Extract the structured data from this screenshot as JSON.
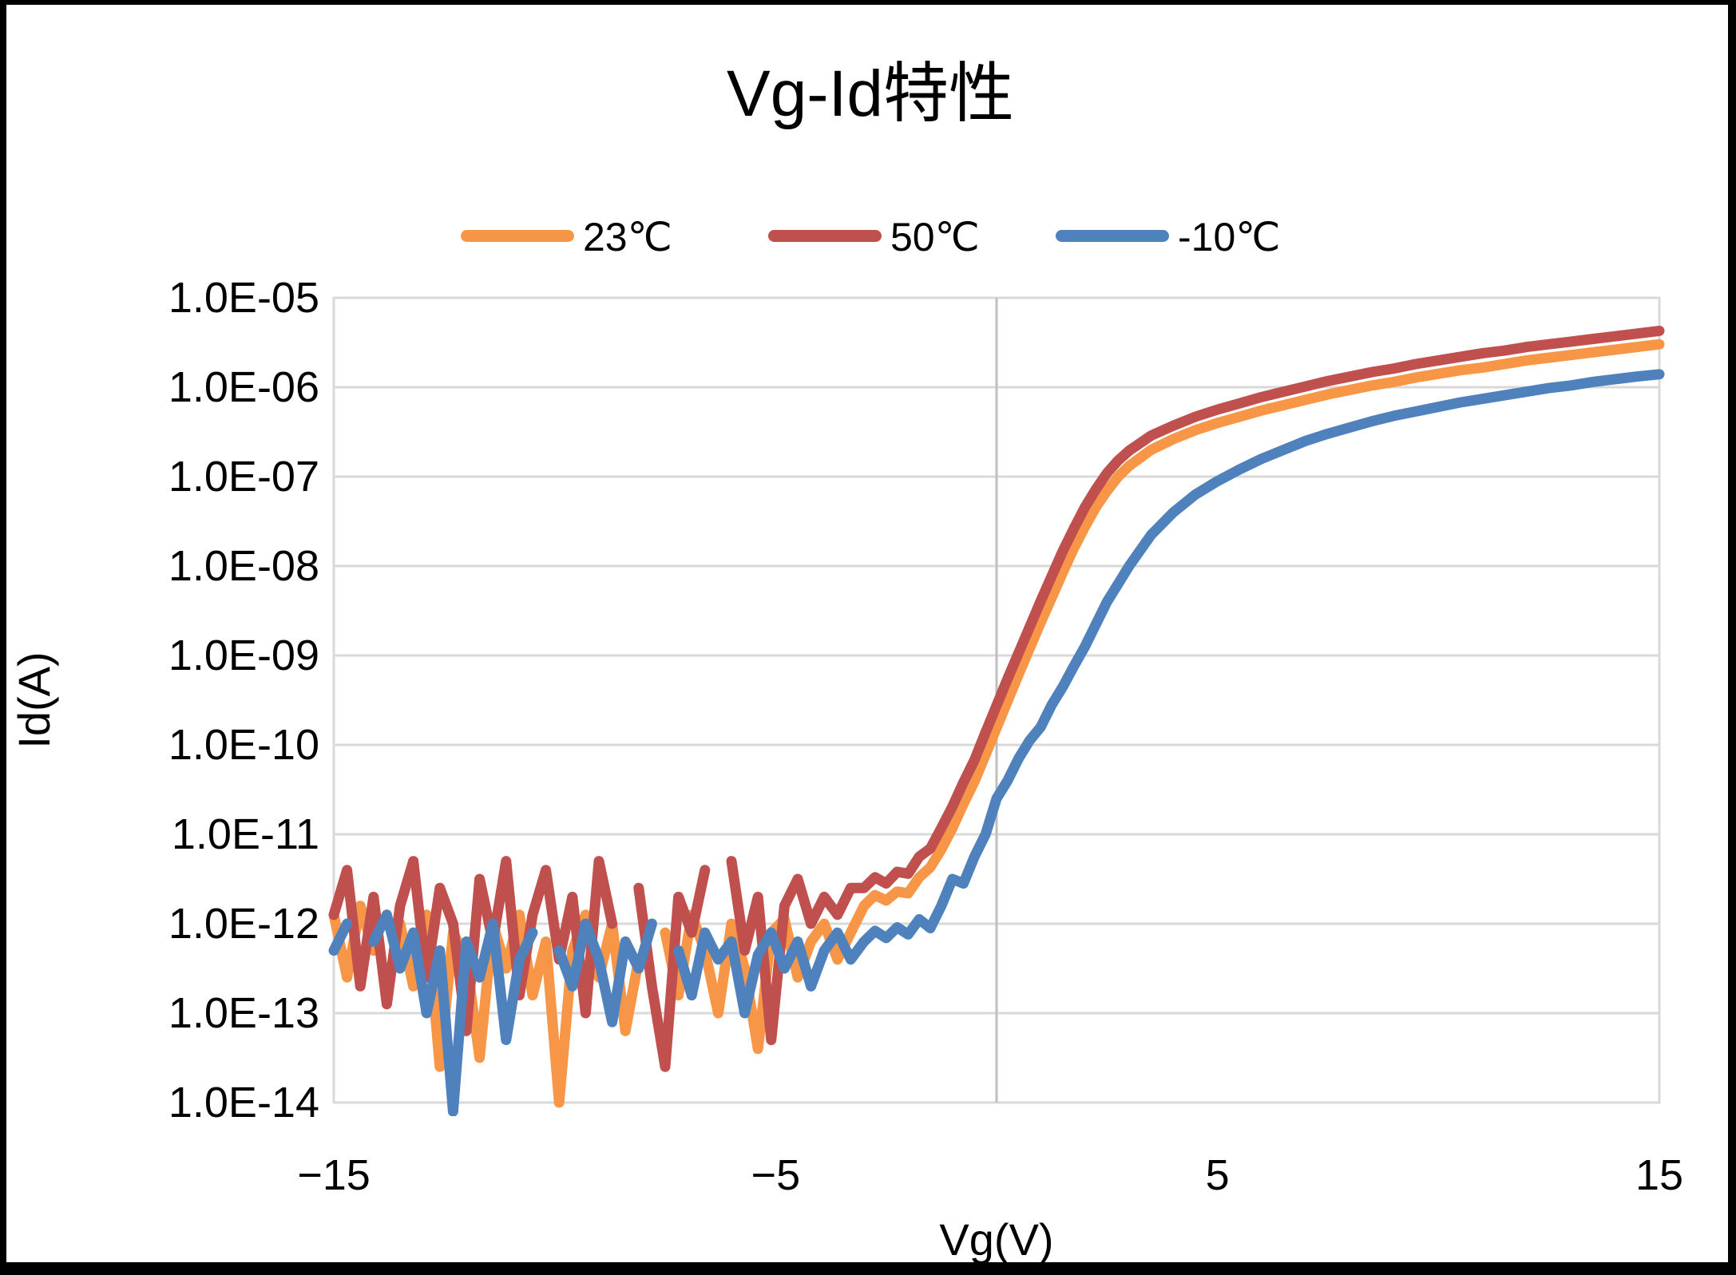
{
  "title": "Vg-Id特性",
  "legend": [
    {
      "label": "23℃",
      "color": "#F79646"
    },
    {
      "label": "50℃",
      "color": "#C0504D"
    },
    {
      "label": "-10℃",
      "color": "#4F81BD"
    }
  ],
  "axes": {
    "x": {
      "label": "Vg(V)",
      "min": -15,
      "max": 15,
      "ticks": [
        {
          "v": -15,
          "label": "−15"
        },
        {
          "v": -5,
          "label": "−5"
        },
        {
          "v": 5,
          "label": "5"
        },
        {
          "v": 15,
          "label": "15"
        }
      ]
    },
    "y": {
      "label": "Id(A)",
      "scale": "log",
      "top_exp": -5,
      "bottom_exp": -14,
      "ticks": [
        "1.0E-05",
        "1.0E-06",
        "1.0E-07",
        "1.0E-08",
        "1.0E-09",
        "1.0E-10",
        "1.0E-11",
        "1.0E-12",
        "1.0E-13",
        "1.0E-14"
      ]
    }
  },
  "colors": {
    "gridline": "#D9D9D9",
    "zero_axis": "#BFBFBF",
    "plot_border": "#D9D9D9",
    "background": "#FFFFFF",
    "frame": "#000000",
    "text": "#000000"
  },
  "chart_data": {
    "type": "line",
    "title": "Vg-Id特性",
    "xlabel": "Vg(V)",
    "ylabel": "Id(A)",
    "xlim": [
      -15,
      15
    ],
    "ylim_log10": [
      -14,
      -5
    ],
    "grid": "horizontal-major",
    "legend_position": "top",
    "y_values_are": "log10(Id in A), null = not plotted (gap)",
    "x": [
      -15,
      -14.7,
      -14.4,
      -14.1,
      -13.8,
      -13.5,
      -13.2,
      -12.9,
      -12.6,
      -12.3,
      -12,
      -11.7,
      -11.4,
      -11.1,
      -10.8,
      -10.5,
      -10.2,
      -9.9,
      -9.6,
      -9.3,
      -9,
      -8.7,
      -8.4,
      -8.1,
      -7.8,
      -7.5,
      -7.2,
      -6.9,
      -6.6,
      -6.3,
      -6,
      -5.7,
      -5.4,
      -5.1,
      -4.8,
      -4.5,
      -4.2,
      -3.9,
      -3.6,
      -3.3,
      -3,
      -2.75,
      -2.5,
      -2.25,
      -2,
      -1.75,
      -1.5,
      -1.25,
      -1,
      -0.75,
      -0.5,
      -0.25,
      0,
      0.25,
      0.5,
      0.75,
      1,
      1.25,
      1.5,
      1.75,
      2,
      2.25,
      2.5,
      2.75,
      3,
      3.5,
      4,
      4.5,
      5,
      5.5,
      6,
      6.5,
      7,
      7.5,
      8,
      8.5,
      9,
      9.5,
      10,
      10.5,
      11,
      11.5,
      12,
      12.5,
      13,
      13.5,
      14,
      14.5,
      15
    ],
    "series": [
      {
        "name": "23℃",
        "color": "#F79646",
        "logId": [
          -11.9,
          -12.6,
          -11.8,
          -12.3,
          null,
          -12.0,
          -12.7,
          -11.9,
          -13.6,
          -12.1,
          -12.4,
          -13.5,
          -12.0,
          -12.5,
          -11.9,
          -12.8,
          -12.2,
          -14.0,
          -12.3,
          -11.9,
          -12.6,
          -12.0,
          -13.2,
          -12.4,
          null,
          -12.1,
          -12.8,
          -11.9,
          -12.3,
          -13.0,
          -12.0,
          -12.5,
          -13.4,
          -12.1,
          -11.95,
          -12.6,
          -12.2,
          -12.0,
          -12.4,
          -12.1,
          -11.8,
          -11.68,
          -11.74,
          -11.64,
          -11.66,
          -11.48,
          -11.37,
          -11.17,
          -10.93,
          -10.66,
          -10.41,
          -10.11,
          -9.81,
          -9.51,
          -9.21,
          -8.92,
          -8.63,
          -8.35,
          -8.07,
          -7.8,
          -7.56,
          -7.34,
          -7.16,
          -7.0,
          -6.88,
          -6.7,
          -6.58,
          -6.48,
          -6.4,
          -6.33,
          -6.26,
          -6.2,
          -6.14,
          -6.08,
          -6.03,
          -5.98,
          -5.94,
          -5.89,
          -5.85,
          -5.81,
          -5.78,
          -5.74,
          -5.7,
          -5.67,
          -5.64,
          -5.61,
          -5.58,
          -5.55,
          -5.52
        ]
      },
      {
        "name": "50℃",
        "color": "#C0504D",
        "logId": [
          -11.9,
          -11.4,
          -12.7,
          -11.7,
          -12.9,
          -11.8,
          -11.3,
          -12.6,
          -11.6,
          -12.0,
          -13.2,
          -11.5,
          -12.2,
          -11.3,
          -12.8,
          -11.9,
          -11.4,
          -12.4,
          -11.7,
          -13.0,
          -11.3,
          -12.0,
          null,
          -11.6,
          -12.7,
          -13.6,
          -11.7,
          -12.1,
          -11.4,
          null,
          -11.3,
          -12.3,
          -11.7,
          -13.3,
          -11.8,
          -11.5,
          -12.0,
          -11.7,
          -11.9,
          -11.6,
          -11.6,
          -11.48,
          -11.55,
          -11.42,
          -11.44,
          -11.25,
          -11.16,
          -10.93,
          -10.69,
          -10.42,
          -10.17,
          -9.86,
          -9.56,
          -9.26,
          -8.97,
          -8.68,
          -8.39,
          -8.11,
          -7.83,
          -7.58,
          -7.34,
          -7.14,
          -6.96,
          -6.82,
          -6.71,
          -6.54,
          -6.43,
          -6.33,
          -6.25,
          -6.18,
          -6.11,
          -6.05,
          -5.99,
          -5.93,
          -5.88,
          -5.83,
          -5.79,
          -5.74,
          -5.7,
          -5.66,
          -5.62,
          -5.59,
          -5.55,
          -5.52,
          -5.49,
          -5.46,
          -5.43,
          -5.4,
          -5.37
        ]
      },
      {
        "name": "-10℃",
        "color": "#4F81BD",
        "logId": [
          -12.3,
          -12.0,
          null,
          -12.2,
          -11.9,
          -12.5,
          -12.1,
          -13.0,
          -12.3,
          -14.1,
          -12.2,
          -12.6,
          -12.0,
          -13.3,
          -12.4,
          -12.1,
          null,
          -12.3,
          -12.7,
          -12.0,
          -12.4,
          -13.1,
          -12.2,
          -12.5,
          -12.0,
          null,
          -12.3,
          -12.8,
          -12.1,
          -12.4,
          -12.2,
          -13.0,
          -12.35,
          -12.1,
          -12.5,
          -12.2,
          -12.7,
          -12.3,
          -12.1,
          -12.4,
          -12.2,
          -12.08,
          -12.16,
          -12.04,
          -12.12,
          -11.95,
          -12.05,
          -11.8,
          -11.5,
          -11.55,
          -11.25,
          -11.0,
          -10.6,
          -10.4,
          -10.15,
          -9.95,
          -9.8,
          -9.55,
          -9.35,
          -9.12,
          -8.9,
          -8.65,
          -8.4,
          -8.2,
          -8.0,
          -7.65,
          -7.4,
          -7.2,
          -7.05,
          -6.92,
          -6.8,
          -6.7,
          -6.6,
          -6.52,
          -6.45,
          -6.38,
          -6.32,
          -6.27,
          -6.22,
          -6.17,
          -6.13,
          -6.09,
          -6.05,
          -6.01,
          -5.98,
          -5.94,
          -5.91,
          -5.88,
          -5.855
        ]
      }
    ]
  }
}
